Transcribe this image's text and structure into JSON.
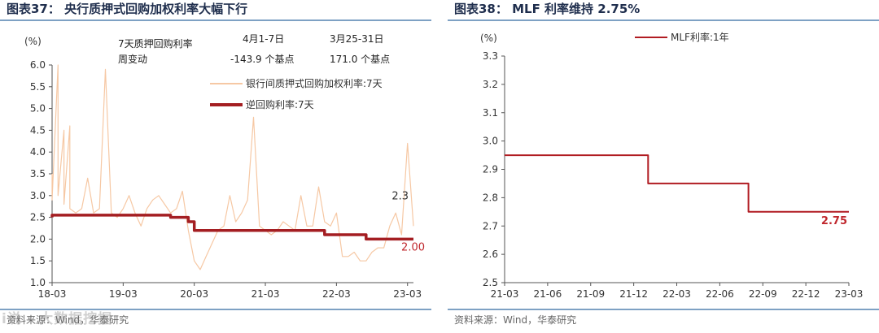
{
  "left": {
    "title": "图表37： 央行质押式回购加权利率大幅下行",
    "source": "资料来源：Wind，华泰研究",
    "watermark": "i说来源 · 大数据挖掘",
    "annot": {
      "row_label_1": "7天质押回购利率",
      "row_label_2": "周变动",
      "col1_header": "4月1-7日",
      "col2_header": "3月25-31日",
      "col1_value": "-143.9 个基点",
      "col2_value": "171.0 个基点"
    },
    "colors": {
      "interbank": "#f6c8a4",
      "reverse_repo": "#a41e22",
      "label_red": "#c0282e"
    },
    "chart_data": {
      "type": "line",
      "ylabel": "(%)",
      "ylim": [
        1.0,
        6.0
      ],
      "yticks": [
        "1.0",
        "1.5",
        "2.0",
        "2.5",
        "3.0",
        "3.5",
        "4.0",
        "4.5",
        "5.0",
        "5.5",
        "6.0"
      ],
      "xticks": [
        "18-03",
        "19-03",
        "20-03",
        "21-03",
        "22-03",
        "23-03"
      ],
      "x_range": [
        "2018-03",
        "2023-04"
      ],
      "series": [
        {
          "name": "银行间质押式回购加权利率:7天",
          "end_label": "2.3",
          "x": [
            "2018-03",
            "2018-03",
            "2018-04",
            "2018-04",
            "2018-05",
            "2018-05",
            "2018-06",
            "2018-06",
            "2018-07",
            "2018-08",
            "2018-09",
            "2018-10",
            "2018-11",
            "2018-12",
            "2019-01",
            "2019-02",
            "2019-03",
            "2019-04",
            "2019-05",
            "2019-06",
            "2019-07",
            "2019-08",
            "2019-09",
            "2019-10",
            "2019-11",
            "2019-12",
            "2020-01",
            "2020-02",
            "2020-03",
            "2020-04",
            "2020-05",
            "2020-06",
            "2020-07",
            "2020-08",
            "2020-09",
            "2020-10",
            "2020-11",
            "2020-12",
            "2021-01",
            "2021-02",
            "2021-03",
            "2021-04",
            "2021-05",
            "2021-06",
            "2021-07",
            "2021-08",
            "2021-09",
            "2021-10",
            "2021-11",
            "2021-12",
            "2022-01",
            "2022-02",
            "2022-03",
            "2022-04",
            "2022-05",
            "2022-06",
            "2022-07",
            "2022-08",
            "2022-09",
            "2022-10",
            "2022-11",
            "2022-12",
            "2023-01",
            "2023-02",
            "2023-03",
            "2023-04"
          ],
          "y": [
            3.5,
            2.9,
            6.0,
            3.0,
            4.5,
            2.8,
            4.6,
            2.7,
            2.6,
            2.7,
            3.4,
            2.6,
            2.7,
            5.9,
            2.6,
            2.5,
            2.7,
            3.0,
            2.6,
            2.3,
            2.7,
            2.9,
            3.0,
            2.8,
            2.6,
            2.7,
            3.1,
            2.2,
            1.5,
            1.3,
            1.6,
            1.9,
            2.2,
            2.3,
            3.0,
            2.4,
            2.6,
            2.9,
            4.8,
            2.3,
            2.2,
            2.1,
            2.2,
            2.4,
            2.3,
            2.2,
            3.0,
            2.3,
            2.3,
            3.2,
            2.4,
            2.3,
            2.6,
            1.6,
            1.6,
            1.7,
            1.5,
            1.5,
            1.7,
            1.8,
            1.8,
            2.3,
            2.6,
            2.1,
            4.2,
            2.3
          ]
        },
        {
          "name": "逆回购利率:7天",
          "end_label": "2.00",
          "step": true,
          "x": [
            "2018-03",
            "2018-03",
            "2019-11",
            "2019-11",
            "2020-02",
            "2020-02",
            "2020-03",
            "2020-03",
            "2022-01",
            "2022-01",
            "2022-08",
            "2022-08",
            "2023-04"
          ],
          "y": [
            2.5,
            2.55,
            2.55,
            2.5,
            2.5,
            2.4,
            2.4,
            2.2,
            2.2,
            2.1,
            2.1,
            2.0,
            2.0
          ]
        }
      ]
    }
  },
  "right": {
    "title": "图表38： MLF 利率维持 2.75%",
    "source": "资料来源：Wind，华泰研究",
    "colors": {
      "mlf": "#b11c22",
      "label_red": "#c0282e"
    },
    "chart_data": {
      "type": "line",
      "ylabel": "(%)",
      "ylim": [
        2.5,
        3.3
      ],
      "yticks": [
        "2.5",
        "2.6",
        "2.7",
        "2.8",
        "2.9",
        "3.0",
        "3.1",
        "3.2",
        "3.3"
      ],
      "xticks": [
        "21-03",
        "21-06",
        "21-09",
        "21-12",
        "22-03",
        "22-06",
        "22-09",
        "22-12",
        "23-03"
      ],
      "x_range": [
        "2021-03",
        "2023-03"
      ],
      "series": [
        {
          "name": "MLF利率:1年",
          "end_label": "2.75",
          "step": true,
          "x": [
            "2021-03",
            "2022-01",
            "2022-01",
            "2022-08",
            "2022-08",
            "2023-03"
          ],
          "y": [
            2.95,
            2.95,
            2.85,
            2.85,
            2.75,
            2.75
          ]
        }
      ]
    }
  }
}
